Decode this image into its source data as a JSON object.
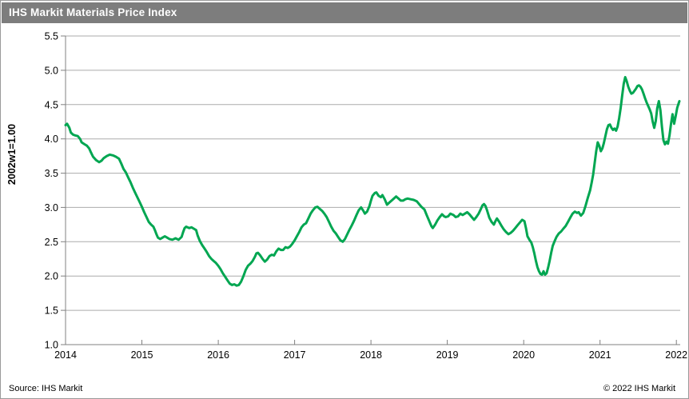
{
  "header": {
    "title": "IHS Markit Materials Price Index"
  },
  "footer": {
    "source": "Source: IHS Markit",
    "copyright": "© 2022  IHS Markit"
  },
  "colors": {
    "titlebar_bg": "#7d7d7d",
    "title_text": "#ffffff",
    "line_green": "#00A651",
    "gridline": "#ababab",
    "axis": "#808080"
  },
  "chart_data": {
    "type": "line",
    "title": "IHS Markit Materials Price Index",
    "xlabel": "",
    "ylabel": "2002w1=1.00",
    "ylim": [
      1.0,
      5.5
    ],
    "xlim": [
      2014,
      2022.05
    ],
    "y_ticks": [
      1.0,
      1.5,
      2.0,
      2.5,
      3.0,
      3.5,
      4.0,
      4.5,
      5.0,
      5.5
    ],
    "x_ticks": [
      2014,
      2015,
      2016,
      2017,
      2018,
      2019,
      2020,
      2021,
      2022
    ],
    "grid": true,
    "legend": "none",
    "line_color": "#00A651",
    "grid_color": "#ababab",
    "axis_color": "#808080",
    "series": [
      {
        "name": "IHS Markit Materials Price Index (2002w1=1.00)",
        "points": [
          [
            2014.0,
            4.2
          ],
          [
            2014.02,
            4.22
          ],
          [
            2014.05,
            4.16
          ],
          [
            2014.07,
            4.09
          ],
          [
            2014.1,
            4.06
          ],
          [
            2014.13,
            4.05
          ],
          [
            2014.16,
            4.04
          ],
          [
            2014.19,
            4.0
          ],
          [
            2014.21,
            3.95
          ],
          [
            2014.25,
            3.92
          ],
          [
            2014.28,
            3.9
          ],
          [
            2014.31,
            3.86
          ],
          [
            2014.33,
            3.81
          ],
          [
            2014.36,
            3.74
          ],
          [
            2014.4,
            3.69
          ],
          [
            2014.44,
            3.66
          ],
          [
            2014.47,
            3.68
          ],
          [
            2014.5,
            3.72
          ],
          [
            2014.54,
            3.75
          ],
          [
            2014.58,
            3.77
          ],
          [
            2014.62,
            3.76
          ],
          [
            2014.66,
            3.74
          ],
          [
            2014.7,
            3.71
          ],
          [
            2014.73,
            3.64
          ],
          [
            2014.76,
            3.56
          ],
          [
            2014.79,
            3.51
          ],
          [
            2014.82,
            3.44
          ],
          [
            2014.85,
            3.37
          ],
          [
            2014.88,
            3.29
          ],
          [
            2014.91,
            3.22
          ],
          [
            2014.94,
            3.15
          ],
          [
            2014.97,
            3.08
          ],
          [
            2015.0,
            3.01
          ],
          [
            2015.03,
            2.93
          ],
          [
            2015.06,
            2.86
          ],
          [
            2015.09,
            2.79
          ],
          [
            2015.12,
            2.75
          ],
          [
            2015.15,
            2.72
          ],
          [
            2015.17,
            2.67
          ],
          [
            2015.19,
            2.61
          ],
          [
            2015.21,
            2.56
          ],
          [
            2015.24,
            2.54
          ],
          [
            2015.27,
            2.56
          ],
          [
            2015.3,
            2.58
          ],
          [
            2015.33,
            2.56
          ],
          [
            2015.36,
            2.54
          ],
          [
            2015.4,
            2.53
          ],
          [
            2015.44,
            2.55
          ],
          [
            2015.48,
            2.53
          ],
          [
            2015.52,
            2.57
          ],
          [
            2015.54,
            2.64
          ],
          [
            2015.56,
            2.7
          ],
          [
            2015.58,
            2.72
          ],
          [
            2015.62,
            2.7
          ],
          [
            2015.65,
            2.71
          ],
          [
            2015.68,
            2.69
          ],
          [
            2015.71,
            2.67
          ],
          [
            2015.73,
            2.59
          ],
          [
            2015.76,
            2.51
          ],
          [
            2015.79,
            2.45
          ],
          [
            2015.82,
            2.4
          ],
          [
            2015.85,
            2.35
          ],
          [
            2015.88,
            2.29
          ],
          [
            2015.91,
            2.25
          ],
          [
            2015.94,
            2.22
          ],
          [
            2015.97,
            2.19
          ],
          [
            2016.0,
            2.15
          ],
          [
            2016.03,
            2.1
          ],
          [
            2016.06,
            2.04
          ],
          [
            2016.09,
            1.99
          ],
          [
            2016.12,
            1.94
          ],
          [
            2016.15,
            1.89
          ],
          [
            2016.18,
            1.87
          ],
          [
            2016.21,
            1.88
          ],
          [
            2016.24,
            1.86
          ],
          [
            2016.27,
            1.87
          ],
          [
            2016.3,
            1.92
          ],
          [
            2016.33,
            2.0
          ],
          [
            2016.36,
            2.09
          ],
          [
            2016.39,
            2.15
          ],
          [
            2016.42,
            2.18
          ],
          [
            2016.45,
            2.22
          ],
          [
            2016.48,
            2.28
          ],
          [
            2016.5,
            2.33
          ],
          [
            2016.52,
            2.34
          ],
          [
            2016.55,
            2.3
          ],
          [
            2016.58,
            2.25
          ],
          [
            2016.61,
            2.21
          ],
          [
            2016.64,
            2.24
          ],
          [
            2016.67,
            2.29
          ],
          [
            2016.7,
            2.31
          ],
          [
            2016.73,
            2.3
          ],
          [
            2016.76,
            2.36
          ],
          [
            2016.79,
            2.4
          ],
          [
            2016.82,
            2.38
          ],
          [
            2016.85,
            2.38
          ],
          [
            2016.88,
            2.42
          ],
          [
            2016.91,
            2.41
          ],
          [
            2016.94,
            2.43
          ],
          [
            2016.97,
            2.47
          ],
          [
            2017.0,
            2.52
          ],
          [
            2017.03,
            2.58
          ],
          [
            2017.06,
            2.64
          ],
          [
            2017.09,
            2.71
          ],
          [
            2017.12,
            2.75
          ],
          [
            2017.15,
            2.77
          ],
          [
            2017.18,
            2.84
          ],
          [
            2017.21,
            2.91
          ],
          [
            2017.24,
            2.96
          ],
          [
            2017.27,
            3.0
          ],
          [
            2017.3,
            3.01
          ],
          [
            2017.33,
            2.98
          ],
          [
            2017.36,
            2.95
          ],
          [
            2017.39,
            2.91
          ],
          [
            2017.42,
            2.86
          ],
          [
            2017.45,
            2.79
          ],
          [
            2017.48,
            2.72
          ],
          [
            2017.51,
            2.66
          ],
          [
            2017.54,
            2.62
          ],
          [
            2017.57,
            2.57
          ],
          [
            2017.6,
            2.52
          ],
          [
            2017.63,
            2.5
          ],
          [
            2017.66,
            2.54
          ],
          [
            2017.69,
            2.61
          ],
          [
            2017.72,
            2.68
          ],
          [
            2017.75,
            2.74
          ],
          [
            2017.78,
            2.81
          ],
          [
            2017.81,
            2.89
          ],
          [
            2017.84,
            2.96
          ],
          [
            2017.87,
            3.0
          ],
          [
            2017.9,
            2.95
          ],
          [
            2017.92,
            2.91
          ],
          [
            2017.95,
            2.94
          ],
          [
            2017.98,
            3.02
          ],
          [
            2018.0,
            3.1
          ],
          [
            2018.02,
            3.17
          ],
          [
            2018.05,
            3.21
          ],
          [
            2018.07,
            3.22
          ],
          [
            2018.1,
            3.17
          ],
          [
            2018.13,
            3.15
          ],
          [
            2018.15,
            3.18
          ],
          [
            2018.18,
            3.12
          ],
          [
            2018.21,
            3.04
          ],
          [
            2018.24,
            3.07
          ],
          [
            2018.27,
            3.1
          ],
          [
            2018.3,
            3.13
          ],
          [
            2018.33,
            3.16
          ],
          [
            2018.36,
            3.13
          ],
          [
            2018.39,
            3.1
          ],
          [
            2018.42,
            3.1
          ],
          [
            2018.45,
            3.12
          ],
          [
            2018.48,
            3.13
          ],
          [
            2018.52,
            3.12
          ],
          [
            2018.56,
            3.11
          ],
          [
            2018.6,
            3.09
          ],
          [
            2018.63,
            3.05
          ],
          [
            2018.66,
            3.01
          ],
          [
            2018.7,
            2.97
          ],
          [
            2018.73,
            2.89
          ],
          [
            2018.76,
            2.81
          ],
          [
            2018.79,
            2.73
          ],
          [
            2018.81,
            2.7
          ],
          [
            2018.84,
            2.75
          ],
          [
            2018.87,
            2.81
          ],
          [
            2018.9,
            2.86
          ],
          [
            2018.93,
            2.9
          ],
          [
            2018.96,
            2.87
          ],
          [
            2018.98,
            2.86
          ],
          [
            2019.01,
            2.87
          ],
          [
            2019.04,
            2.91
          ],
          [
            2019.08,
            2.89
          ],
          [
            2019.11,
            2.86
          ],
          [
            2019.14,
            2.87
          ],
          [
            2019.17,
            2.91
          ],
          [
            2019.2,
            2.89
          ],
          [
            2019.23,
            2.91
          ],
          [
            2019.26,
            2.93
          ],
          [
            2019.29,
            2.9
          ],
          [
            2019.32,
            2.86
          ],
          [
            2019.35,
            2.82
          ],
          [
            2019.38,
            2.86
          ],
          [
            2019.41,
            2.91
          ],
          [
            2019.44,
            2.98
          ],
          [
            2019.46,
            3.03
          ],
          [
            2019.48,
            3.05
          ],
          [
            2019.5,
            3.02
          ],
          [
            2019.52,
            2.96
          ],
          [
            2019.55,
            2.85
          ],
          [
            2019.58,
            2.79
          ],
          [
            2019.61,
            2.75
          ],
          [
            2019.63,
            2.8
          ],
          [
            2019.65,
            2.84
          ],
          [
            2019.68,
            2.79
          ],
          [
            2019.71,
            2.73
          ],
          [
            2019.74,
            2.68
          ],
          [
            2019.77,
            2.64
          ],
          [
            2019.8,
            2.61
          ],
          [
            2019.83,
            2.63
          ],
          [
            2019.86,
            2.66
          ],
          [
            2019.89,
            2.7
          ],
          [
            2019.92,
            2.74
          ],
          [
            2019.95,
            2.78
          ],
          [
            2019.98,
            2.82
          ],
          [
            2020.01,
            2.8
          ],
          [
            2020.03,
            2.7
          ],
          [
            2020.05,
            2.58
          ],
          [
            2020.08,
            2.52
          ],
          [
            2020.1,
            2.49
          ],
          [
            2020.12,
            2.42
          ],
          [
            2020.14,
            2.33
          ],
          [
            2020.16,
            2.22
          ],
          [
            2020.18,
            2.13
          ],
          [
            2020.2,
            2.07
          ],
          [
            2020.22,
            2.03
          ],
          [
            2020.24,
            2.02
          ],
          [
            2020.26,
            2.07
          ],
          [
            2020.28,
            2.02
          ],
          [
            2020.3,
            2.04
          ],
          [
            2020.32,
            2.12
          ],
          [
            2020.34,
            2.22
          ],
          [
            2020.36,
            2.34
          ],
          [
            2020.38,
            2.44
          ],
          [
            2020.41,
            2.52
          ],
          [
            2020.43,
            2.57
          ],
          [
            2020.46,
            2.62
          ],
          [
            2020.49,
            2.65
          ],
          [
            2020.52,
            2.69
          ],
          [
            2020.55,
            2.73
          ],
          [
            2020.58,
            2.79
          ],
          [
            2020.61,
            2.85
          ],
          [
            2020.64,
            2.91
          ],
          [
            2020.67,
            2.94
          ],
          [
            2020.7,
            2.92
          ],
          [
            2020.72,
            2.93
          ],
          [
            2020.75,
            2.88
          ],
          [
            2020.78,
            2.92
          ],
          [
            2020.81,
            3.02
          ],
          [
            2020.84,
            3.14
          ],
          [
            2020.87,
            3.25
          ],
          [
            2020.89,
            3.36
          ],
          [
            2020.91,
            3.48
          ],
          [
            2020.93,
            3.65
          ],
          [
            2020.95,
            3.82
          ],
          [
            2020.97,
            3.95
          ],
          [
            2020.99,
            3.9
          ],
          [
            2021.01,
            3.82
          ],
          [
            2021.03,
            3.86
          ],
          [
            2021.05,
            3.94
          ],
          [
            2021.07,
            4.04
          ],
          [
            2021.09,
            4.14
          ],
          [
            2021.11,
            4.2
          ],
          [
            2021.13,
            4.21
          ],
          [
            2021.15,
            4.16
          ],
          [
            2021.17,
            4.13
          ],
          [
            2021.19,
            4.15
          ],
          [
            2021.21,
            4.12
          ],
          [
            2021.23,
            4.18
          ],
          [
            2021.25,
            4.3
          ],
          [
            2021.27,
            4.45
          ],
          [
            2021.29,
            4.63
          ],
          [
            2021.31,
            4.8
          ],
          [
            2021.33,
            4.9
          ],
          [
            2021.35,
            4.84
          ],
          [
            2021.37,
            4.76
          ],
          [
            2021.39,
            4.7
          ],
          [
            2021.41,
            4.66
          ],
          [
            2021.43,
            4.67
          ],
          [
            2021.45,
            4.7
          ],
          [
            2021.47,
            4.73
          ],
          [
            2021.49,
            4.77
          ],
          [
            2021.51,
            4.78
          ],
          [
            2021.53,
            4.76
          ],
          [
            2021.55,
            4.72
          ],
          [
            2021.57,
            4.66
          ],
          [
            2021.59,
            4.59
          ],
          [
            2021.61,
            4.53
          ],
          [
            2021.63,
            4.48
          ],
          [
            2021.65,
            4.43
          ],
          [
            2021.67,
            4.37
          ],
          [
            2021.69,
            4.25
          ],
          [
            2021.71,
            4.16
          ],
          [
            2021.73,
            4.26
          ],
          [
            2021.75,
            4.45
          ],
          [
            2021.77,
            4.55
          ],
          [
            2021.79,
            4.42
          ],
          [
            2021.81,
            4.18
          ],
          [
            2021.83,
            3.98
          ],
          [
            2021.85,
            3.92
          ],
          [
            2021.87,
            3.96
          ],
          [
            2021.89,
            3.93
          ],
          [
            2021.91,
            4.05
          ],
          [
            2021.93,
            4.22
          ],
          [
            2021.95,
            4.36
          ],
          [
            2021.97,
            4.22
          ],
          [
            2021.99,
            4.33
          ],
          [
            2022.01,
            4.45
          ],
          [
            2022.03,
            4.52
          ],
          [
            2022.04,
            4.55
          ]
        ]
      }
    ]
  }
}
